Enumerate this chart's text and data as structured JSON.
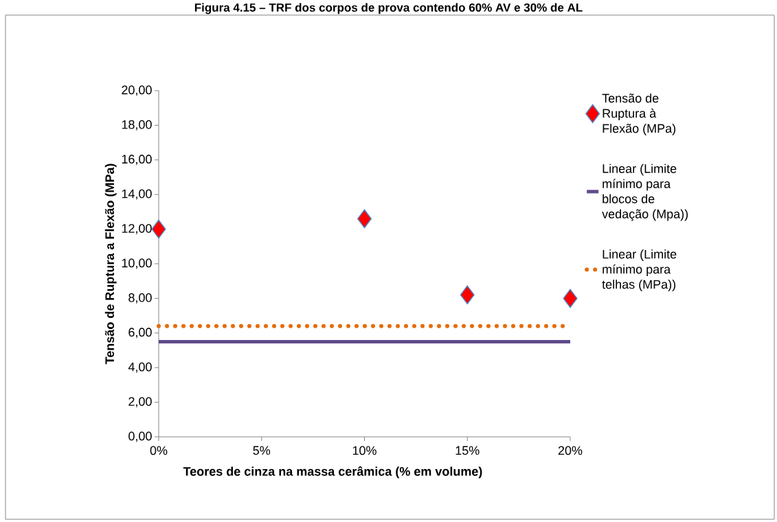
{
  "chart_data": {
    "type": "scatter",
    "title": "Figura 4.15 – TRF dos corpos de prova contendo 60% AV e 30% de AL",
    "xlabel": "Teores de cinza na massa cerâmica (% em volume)",
    "ylabel": "Tensão de Ruptura a Flexão (MPa)",
    "xlim": [
      0,
      20
    ],
    "xticks": [
      {
        "value": 0,
        "label": "0%"
      },
      {
        "value": 5,
        "label": "5%"
      },
      {
        "value": 10,
        "label": "10%"
      },
      {
        "value": 15,
        "label": "15%"
      },
      {
        "value": 20,
        "label": "20%"
      }
    ],
    "ylim": [
      0,
      20
    ],
    "yticks": [
      {
        "value": 0,
        "label": "0,00"
      },
      {
        "value": 2,
        "label": "2,00"
      },
      {
        "value": 4,
        "label": "4,00"
      },
      {
        "value": 6,
        "label": "6,00"
      },
      {
        "value": 8,
        "label": "8,00"
      },
      {
        "value": 10,
        "label": "10,00"
      },
      {
        "value": 12,
        "label": "12,00"
      },
      {
        "value": 14,
        "label": "14,00"
      },
      {
        "value": 16,
        "label": "16,00"
      },
      {
        "value": 18,
        "label": "18,00"
      },
      {
        "value": 20,
        "label": "20,00"
      }
    ],
    "legend": "right",
    "grid": false,
    "series": [
      {
        "name": "Tensão de Ruptura à Flexão (MPa)",
        "color": "#ff0000",
        "marker": "diamond",
        "x": [
          0,
          10,
          15,
          20
        ],
        "values": [
          12.0,
          12.6,
          8.2,
          8.0
        ]
      },
      {
        "name": "Linear (Limite mínimo para blocos de vedação (Mpa))",
        "type": "line",
        "color": "#5f4b8b",
        "line_style": "solid",
        "marker": "none",
        "x": [
          0,
          20
        ],
        "values": [
          5.5,
          5.5
        ]
      },
      {
        "name": "Linear (Limite mínimo para telhas (MPa))",
        "type": "line",
        "color": "#e46c0a",
        "line_style": "dotted",
        "marker": "none",
        "x": [
          0,
          20
        ],
        "values": [
          6.4,
          6.4
        ]
      }
    ]
  }
}
